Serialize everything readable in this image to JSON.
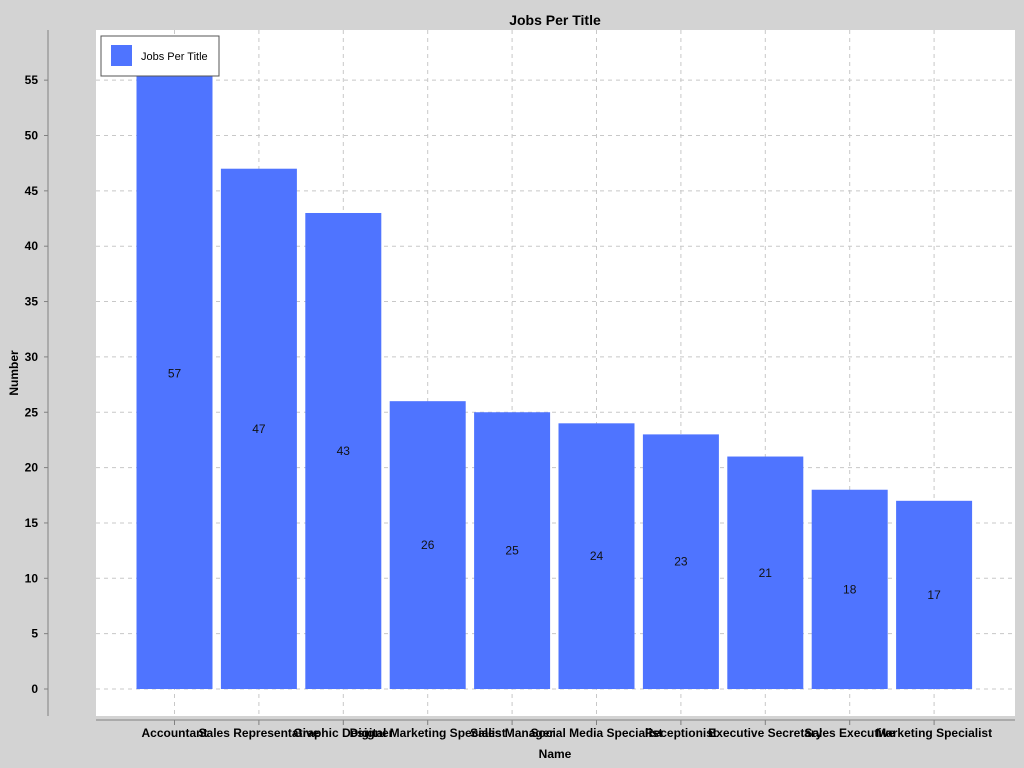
{
  "chart_data": {
    "type": "bar",
    "title": "Jobs Per Title",
    "xlabel": "Name",
    "ylabel": "Number",
    "categories": [
      "Accountant",
      "Sales Representative",
      "Graphic Designer",
      "Digital Marketing Specialist",
      "Sales Manager",
      "Social Media Specialist",
      "Receptionist",
      "Executive Secretary",
      "Sales Executive",
      "Marketing Specialist"
    ],
    "series": [
      {
        "name": "Jobs Per Title",
        "values": [
          57,
          47,
          43,
          26,
          25,
          24,
          23,
          21,
          18,
          17
        ]
      }
    ],
    "ylim": [
      0,
      55
    ],
    "yticks": [
      0,
      5,
      10,
      15,
      20,
      25,
      30,
      35,
      40,
      45,
      50,
      55
    ],
    "grid": true,
    "legend_position": "top-left",
    "colors": {
      "bar": "#4f74ff",
      "background": "#d3d3d3",
      "plot_background": "#ffffff",
      "grid": "#c8c8c8"
    }
  }
}
